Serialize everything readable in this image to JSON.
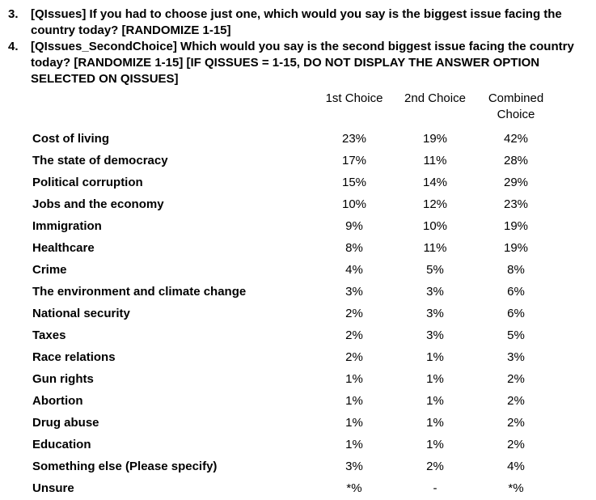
{
  "document": {
    "questions": [
      {
        "number": "3.",
        "text": "[QIssues] If you had to choose just one, which would you say is the biggest issue facing the country today? [RANDOMIZE 1-15]"
      },
      {
        "number": "4.",
        "text": "[QIssues_SecondChoice] Which would you say is the second biggest issue facing the country today? [RANDOMIZE 1-15] [IF QISSUES = 1-15, DO NOT DISPLAY THE ANSWER OPTION SELECTED ON QISSUES]"
      }
    ]
  },
  "table": {
    "headers": [
      "1st Choice",
      "2nd Choice",
      "Combined Choice"
    ],
    "rows": [
      {
        "label": "Cost of living",
        "first": "23%",
        "second": "19%",
        "combined": "42%"
      },
      {
        "label": "The state of democracy",
        "first": "17%",
        "second": "11%",
        "combined": "28%"
      },
      {
        "label": "Political corruption",
        "first": "15%",
        "second": "14%",
        "combined": "29%"
      },
      {
        "label": "Jobs and the economy",
        "first": "10%",
        "second": "12%",
        "combined": "23%"
      },
      {
        "label": "Immigration",
        "first": "9%",
        "second": "10%",
        "combined": "19%"
      },
      {
        "label": "Healthcare",
        "first": "8%",
        "second": "11%",
        "combined": "19%"
      },
      {
        "label": "Crime",
        "first": "4%",
        "second": "5%",
        "combined": "8%"
      },
      {
        "label": "The environment and climate change",
        "first": "3%",
        "second": "3%",
        "combined": "6%"
      },
      {
        "label": "National security",
        "first": "2%",
        "second": "3%",
        "combined": "6%"
      },
      {
        "label": "Taxes",
        "first": "2%",
        "second": "3%",
        "combined": "5%"
      },
      {
        "label": "Race relations",
        "first": "2%",
        "second": "1%",
        "combined": "3%"
      },
      {
        "label": "Gun rights",
        "first": "1%",
        "second": "1%",
        "combined": "2%"
      },
      {
        "label": "Abortion",
        "first": "1%",
        "second": "1%",
        "combined": "2%"
      },
      {
        "label": "Drug abuse",
        "first": "1%",
        "second": "1%",
        "combined": "2%"
      },
      {
        "label": "Education",
        "first": "1%",
        "second": "1%",
        "combined": "2%"
      },
      {
        "label": "Something else (Please specify)",
        "first": "3%",
        "second": "2%",
        "combined": "4%"
      },
      {
        "label": "Unsure",
        "first": "*%",
        "second": "-",
        "combined": "*%"
      }
    ]
  },
  "colors": {
    "background": "#ffffff",
    "text": "#000000"
  }
}
